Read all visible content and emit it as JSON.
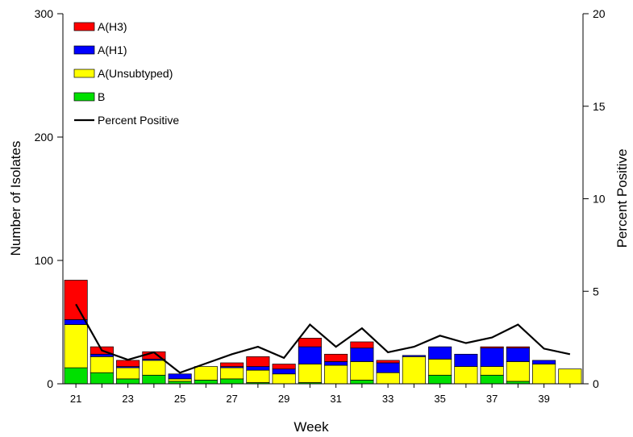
{
  "chart_data": {
    "type": "bar",
    "stacked": true,
    "x": [
      21,
      22,
      23,
      24,
      25,
      26,
      27,
      28,
      29,
      30,
      31,
      32,
      33,
      34,
      35,
      36,
      37,
      38,
      39,
      40
    ],
    "xlabel": "Week",
    "xtick_labels": [
      "21",
      "23",
      "25",
      "27",
      "29",
      "31",
      "33",
      "35",
      "37",
      "39"
    ],
    "ylabel": "Number of Isolates",
    "ylim": [
      0,
      300
    ],
    "yticks": [
      0,
      100,
      200,
      300
    ],
    "y2label": "Percent Positive",
    "y2lim": [
      0,
      20
    ],
    "y2ticks": [
      0,
      5,
      10,
      15,
      20
    ],
    "legend_position": "top-left",
    "series": [
      {
        "name": "A(H3)",
        "color": "#ff0000",
        "values": [
          32,
          6,
          5,
          6,
          0,
          0,
          3,
          8,
          4,
          7,
          6,
          5,
          2,
          0,
          0,
          0,
          1,
          1,
          0,
          0
        ]
      },
      {
        "name": "A(H1)",
        "color": "#0000ff",
        "values": [
          4,
          2,
          1,
          1,
          4,
          0,
          1,
          3,
          4,
          14,
          3,
          11,
          8,
          1,
          10,
          10,
          15,
          11,
          3,
          0
        ]
      },
      {
        "name": "A(Unsubtyped)",
        "color": "#ffff00",
        "values": [
          35,
          13,
          9,
          12,
          2,
          11,
          9,
          10,
          8,
          15,
          15,
          15,
          9,
          22,
          13,
          14,
          7,
          16,
          16,
          12
        ]
      },
      {
        "name": "B",
        "color": "#00e000",
        "values": [
          13,
          9,
          4,
          7,
          2,
          3,
          4,
          1,
          0,
          1,
          0,
          3,
          0,
          0,
          7,
          0,
          7,
          2,
          0,
          0
        ]
      }
    ],
    "line": {
      "name": "Percent Positive",
      "color": "#000000",
      "values": [
        4.3,
        1.8,
        1.3,
        1.7,
        0.6,
        1.1,
        1.6,
        2.0,
        1.4,
        3.2,
        2.0,
        3.0,
        1.7,
        2.0,
        2.6,
        2.2,
        2.5,
        3.2,
        1.9,
        1.6
      ]
    }
  }
}
